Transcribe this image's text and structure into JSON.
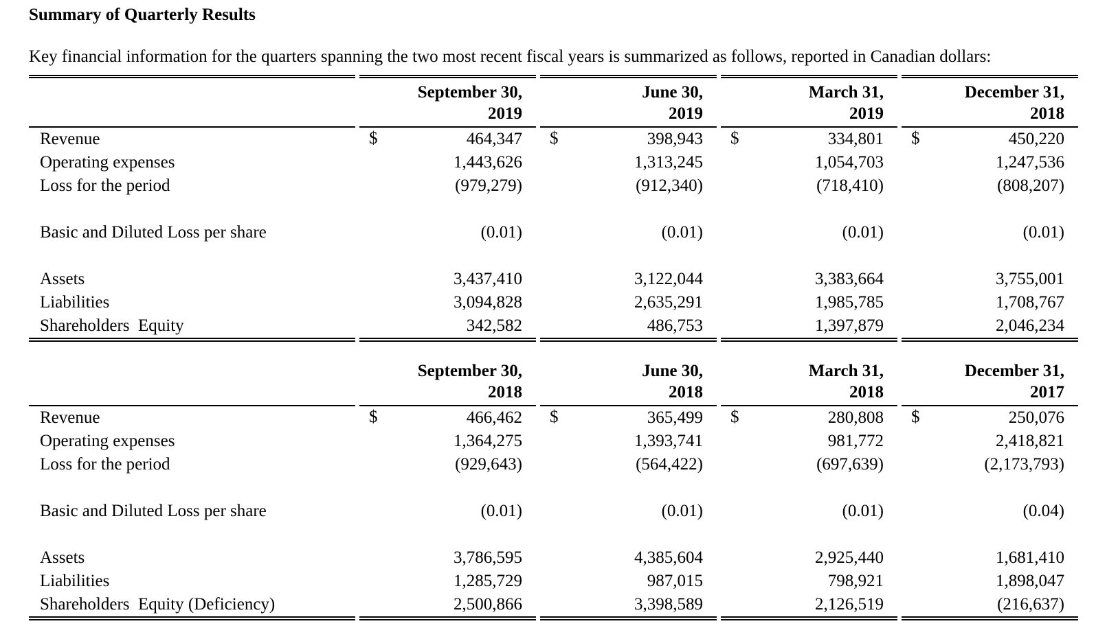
{
  "document": {
    "title": "Summary of Quarterly Results",
    "intro": "Key financial information for the quarters spanning the two most recent fiscal years is summarized as follows, reported in Canadian dollars:"
  },
  "currency_symbol": "$",
  "text_color": "#000000",
  "background_color": "#ffffff",
  "tables": [
    {
      "name": "fiscal-2019-quarters",
      "headers": [
        {
          "line1": "September 30,",
          "line2": "2019"
        },
        {
          "line1": "June 30,",
          "line2": "2019"
        },
        {
          "line1": "March 31,",
          "line2": "2019"
        },
        {
          "line1": "December 31,",
          "line2": "2018"
        }
      ],
      "rows": [
        {
          "label": "Revenue",
          "currency": true,
          "values": [
            "464,347",
            "398,943",
            "334,801",
            "450,220"
          ]
        },
        {
          "label": "Operating expenses",
          "currency": false,
          "values": [
            "1,443,626",
            "1,313,245",
            "1,054,703",
            "1,247,536"
          ]
        },
        {
          "label": "Loss for the period",
          "currency": false,
          "values": [
            "(979,279)",
            "(912,340)",
            "(718,410)",
            "(808,207)"
          ]
        },
        {
          "spacer": true
        },
        {
          "label": "Basic and Diluted Loss per share",
          "currency": false,
          "values": [
            "(0.01)",
            "(0.01)",
            "(0.01)",
            "(0.01)"
          ]
        },
        {
          "spacer": true
        },
        {
          "label": "Assets",
          "currency": false,
          "values": [
            "3,437,410",
            "3,122,044",
            "3,383,664",
            "3,755,001"
          ]
        },
        {
          "label": "Liabilities",
          "currency": false,
          "values": [
            "3,094,828",
            "2,635,291",
            "1,985,785",
            "1,708,767"
          ]
        },
        {
          "label": "Shareholders  Equity",
          "currency": false,
          "values": [
            "342,582",
            "486,753",
            "1,397,879",
            "2,046,234"
          ]
        }
      ]
    },
    {
      "name": "fiscal-2018-quarters",
      "headers": [
        {
          "line1": "September 30,",
          "line2": "2018"
        },
        {
          "line1": "June 30,",
          "line2": "2018"
        },
        {
          "line1": "March 31,",
          "line2": "2018"
        },
        {
          "line1": "December 31,",
          "line2": "2017"
        }
      ],
      "rows": [
        {
          "label": "Revenue",
          "currency": true,
          "values": [
            "466,462",
            "365,499",
            "280,808",
            "250,076"
          ]
        },
        {
          "label": "Operating expenses",
          "currency": false,
          "values": [
            "1,364,275",
            "1,393,741",
            "981,772",
            "2,418,821"
          ]
        },
        {
          "label": "Loss for the period",
          "currency": false,
          "values": [
            "(929,643)",
            "(564,422)",
            "(697,639)",
            "(2,173,793)"
          ]
        },
        {
          "spacer": true
        },
        {
          "label": "Basic and Diluted Loss per share",
          "currency": false,
          "values": [
            "(0.01)",
            "(0.01)",
            "(0.01)",
            "(0.04)"
          ]
        },
        {
          "spacer": true
        },
        {
          "label": "Assets",
          "currency": false,
          "values": [
            "3,786,595",
            "4,385,604",
            "2,925,440",
            "1,681,410"
          ]
        },
        {
          "label": "Liabilities",
          "currency": false,
          "values": [
            "1,285,729",
            "987,015",
            "798,921",
            "1,898,047"
          ]
        },
        {
          "label": "Shareholders  Equity (Deficiency)",
          "currency": false,
          "values": [
            "2,500,866",
            "3,398,589",
            "2,126,519",
            "(216,637)"
          ]
        }
      ]
    }
  ]
}
